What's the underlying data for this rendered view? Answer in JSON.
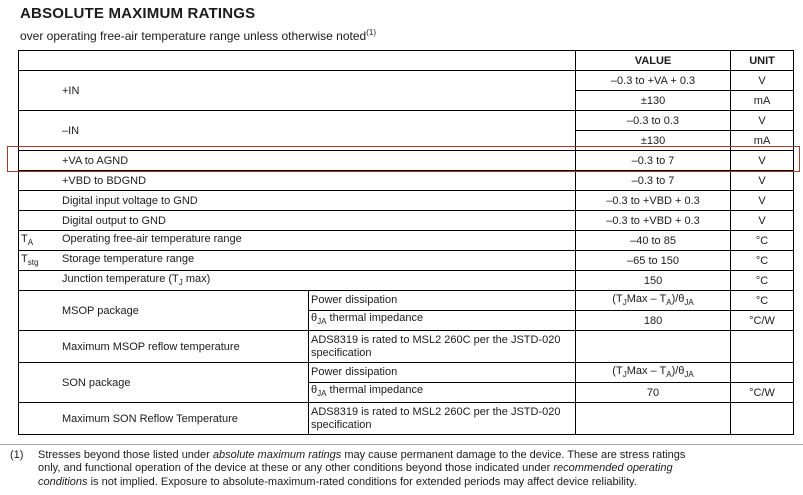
{
  "title": "ABSOLUTE MAXIMUM RATINGS",
  "subtitle": "over operating free-air temperature range unless otherwise noted^{(1)}",
  "highlight_color": "#a33b2c",
  "table": {
    "header": {
      "value": "VALUE",
      "unit": "UNIT"
    },
    "rows": [
      {
        "sym": "",
        "param": "+IN",
        "value": "–0.3 to +VA + 0.3",
        "unit": "V"
      },
      {
        "value": "±130",
        "unit": "mA"
      },
      {
        "sym": "",
        "param": "–IN",
        "value": "–0.3 to 0.3",
        "unit": "V"
      },
      {
        "value": "±130",
        "unit": "mA"
      },
      {
        "sym": "",
        "param": "+VA to AGND",
        "value": "–0.3 to 7",
        "unit": "V",
        "highlighted": true
      },
      {
        "sym": "",
        "param": "+VBD to BDGND",
        "value": "–0.3 to 7",
        "unit": "V"
      },
      {
        "sym": "",
        "param": "Digital input voltage to GND",
        "value": "–0.3 to +VBD + 0.3",
        "unit": "V"
      },
      {
        "sym": "",
        "param": "Digital output to GND",
        "value": "–0.3 to +VBD + 0.3",
        "unit": "V"
      },
      {
        "sym": "T_{A}",
        "param": "Operating free-air temperature range",
        "value": "–40 to 85",
        "unit": "°C"
      },
      {
        "sym": "T_{stg}",
        "param": "Storage temperature range",
        "value": "–65 to 150",
        "unit": "°C"
      },
      {
        "sym": "",
        "param": "Junction temperature (T_{J} max)",
        "value": "150",
        "unit": "°C"
      },
      {
        "sym": "",
        "param": "MSOP package",
        "detail": "Power dissipation",
        "value": "(T_{J}Max – T_{A})/θ_{JA}",
        "unit": "°C"
      },
      {
        "detail": "θ_{JA} thermal impedance",
        "value": "180",
        "unit": "°C/W"
      },
      {
        "sym": "",
        "param": "Maximum MSOP reflow temperature",
        "detail": "ADS8319 is rated to MSL2 260C per the JSTD-020 specification",
        "value": "",
        "unit": ""
      },
      {
        "sym": "",
        "param": "SON package",
        "detail": "Power dissipation",
        "value": "(T_{J}Max – T_{A})/θ_{JA}",
        "unit": ""
      },
      {
        "detail": "θ_{JA} thermal impedance",
        "value": "70",
        "unit": "°C/W"
      },
      {
        "sym": "",
        "param": "Maximum SON Reflow Temperature",
        "detail": "ADS8319 is rated to MSL2 260C per the JSTD-020 specification",
        "value": "",
        "unit": ""
      }
    ]
  },
  "footnote": {
    "marker": "(1)",
    "text": "Stresses beyond those listed under *absolute maximum ratings* may cause permanent damage to the device. These are stress ratings\nonly, and functional operation of the device at these or any other conditions beyond those indicated under *recommended operating*\n*conditions* is not implied. Exposure to absolute-maximum-rated conditions for extended periods may affect device reliability."
  }
}
